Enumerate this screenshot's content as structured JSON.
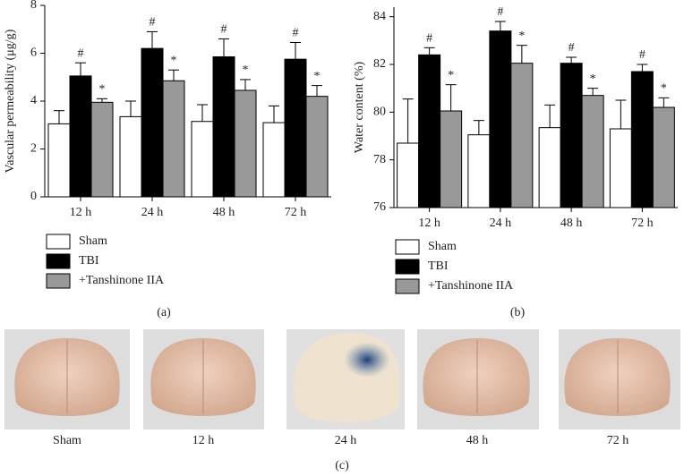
{
  "chart_data": [
    {
      "type": "bar",
      "caption": "(a)",
      "y_label": "Vascular permeability (μg/g)",
      "categories": [
        "12 h",
        "24 h",
        "48 h",
        "72 h"
      ],
      "series": [
        {
          "name": "Sham",
          "color": "#ffffff",
          "values": [
            3.05,
            3.35,
            3.15,
            3.1
          ],
          "errors": [
            0.55,
            0.65,
            0.7,
            0.7
          ]
        },
        {
          "name": "TBI",
          "color": "#000000",
          "values": [
            5.05,
            6.2,
            5.85,
            5.75
          ],
          "errors": [
            0.55,
            0.7,
            0.75,
            0.7
          ],
          "marker": "#"
        },
        {
          "name": "+Tanshinone IIA",
          "color": "#999999",
          "values": [
            3.95,
            4.85,
            4.45,
            4.2
          ],
          "errors": [
            0.15,
            0.45,
            0.45,
            0.45
          ],
          "marker": "*"
        }
      ],
      "ylim": [
        0,
        8
      ],
      "yticks": [
        0,
        2,
        4,
        6,
        8
      ],
      "legend": "bottom-left"
    },
    {
      "type": "bar",
      "caption": "(b)",
      "y_label": "Water content (%)",
      "categories": [
        "12 h",
        "24 h",
        "48 h",
        "72 h"
      ],
      "series": [
        {
          "name": "Sham",
          "color": "#ffffff",
          "values": [
            78.7,
            79.05,
            79.35,
            79.3
          ],
          "errors": [
            1.85,
            0.6,
            0.95,
            1.2
          ]
        },
        {
          "name": "TBI",
          "color": "#000000",
          "values": [
            82.4,
            83.4,
            82.05,
            81.7
          ],
          "errors": [
            0.3,
            0.4,
            0.25,
            0.3
          ],
          "marker": "#"
        },
        {
          "name": "+Tanshinone IIA",
          "color": "#999999",
          "values": [
            80.05,
            82.05,
            80.7,
            80.2
          ],
          "errors": [
            1.1,
            0.75,
            0.3,
            0.4
          ],
          "marker": "*"
        }
      ],
      "ylim": [
        76,
        84.4
      ],
      "yticks": [
        76,
        78,
        80,
        82,
        84
      ],
      "legend": "bottom-left"
    }
  ],
  "photo_panel": {
    "labels": [
      "Sham",
      "12 h",
      "24 h",
      "48 h",
      "72 h"
    ],
    "caption": "(c)"
  }
}
